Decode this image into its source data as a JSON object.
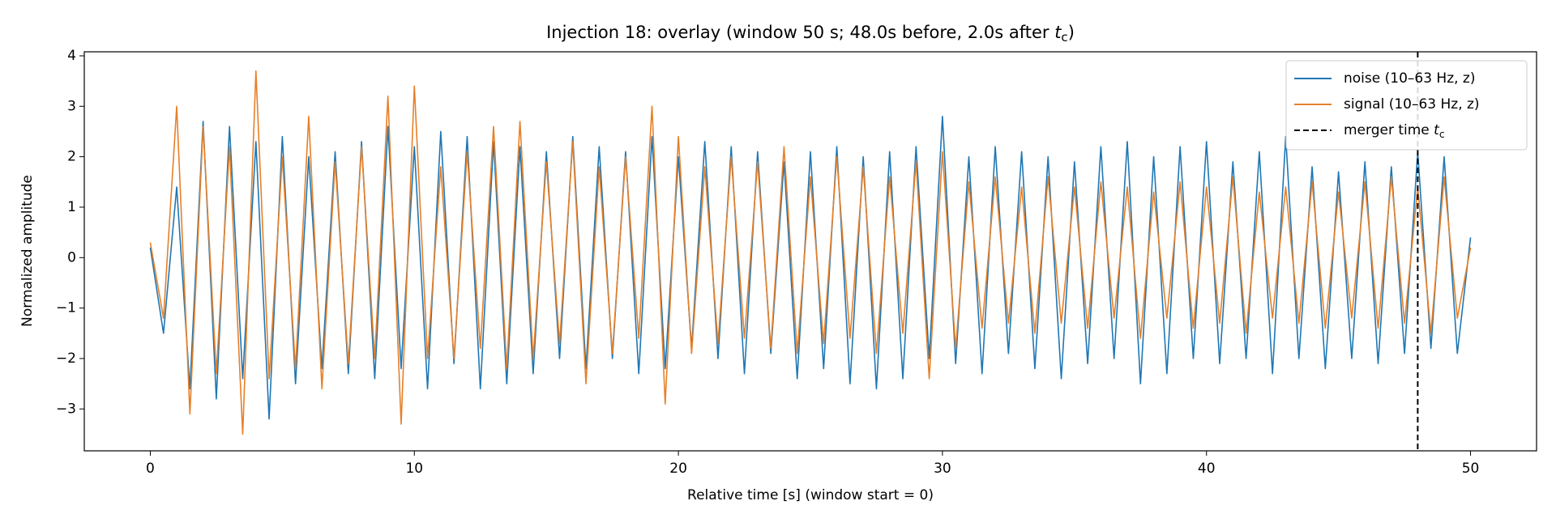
{
  "chart_data": {
    "type": "line",
    "title": "Injection 18: overlay (window 50 s; 48.0s before, 2.0s after t_c)",
    "xlabel": "Relative time [s] (window start = 0)",
    "ylabel": "Normalized amplitude",
    "x": [
      0,
      0.5,
      1,
      1.5,
      2,
      2.5,
      3,
      3.5,
      4,
      4.5,
      5,
      5.5,
      6,
      6.5,
      7,
      7.5,
      8,
      8.5,
      9,
      9.5,
      10,
      10.5,
      11,
      11.5,
      12,
      12.5,
      13,
      13.5,
      14,
      14.5,
      15,
      15.5,
      16,
      16.5,
      17,
      17.5,
      18,
      18.5,
      19,
      19.5,
      20,
      20.5,
      21,
      21.5,
      22,
      22.5,
      23,
      23.5,
      24,
      24.5,
      25,
      25.5,
      26,
      26.5,
      27,
      27.5,
      28,
      28.5,
      29,
      29.5,
      30,
      30.5,
      31,
      31.5,
      32,
      32.5,
      33,
      33.5,
      34,
      34.5,
      35,
      35.5,
      36,
      36.5,
      37,
      37.5,
      38,
      38.5,
      39,
      39.5,
      40,
      40.5,
      41,
      41.5,
      42,
      42.5,
      43,
      43.5,
      44,
      44.5,
      45,
      45.5,
      46,
      46.5,
      47,
      47.5,
      48,
      48.5,
      49,
      49.5,
      50
    ],
    "series": [
      {
        "name": "noise (10–63 Hz, z)",
        "color": "#1f77b4",
        "values": [
          0.2,
          -1.5,
          1.4,
          -2.6,
          2.7,
          -2.8,
          2.6,
          -2.4,
          2.3,
          -3.2,
          2.4,
          -2.5,
          2.0,
          -2.2,
          2.1,
          -2.3,
          2.3,
          -2.4,
          2.6,
          -2.2,
          2.2,
          -2.6,
          2.5,
          -2.1,
          2.4,
          -2.6,
          2.3,
          -2.5,
          2.2,
          -2.3,
          2.1,
          -2.0,
          2.4,
          -2.2,
          2.2,
          -2.0,
          2.1,
          -2.3,
          2.4,
          -2.2,
          2.0,
          -1.8,
          2.3,
          -2.0,
          2.2,
          -2.3,
          2.1,
          -1.9,
          1.9,
          -2.4,
          2.1,
          -2.2,
          2.2,
          -2.5,
          2.0,
          -2.6,
          2.1,
          -2.4,
          2.2,
          -2.0,
          2.8,
          -2.1,
          2.0,
          -2.3,
          2.2,
          -1.9,
          2.1,
          -2.2,
          2.0,
          -2.4,
          1.9,
          -2.1,
          2.2,
          -2.0,
          2.3,
          -2.5,
          2.0,
          -2.3,
          2.2,
          -2.0,
          2.3,
          -2.1,
          1.9,
          -2.0,
          2.1,
          -2.3,
          2.4,
          -2.0,
          1.8,
          -2.2,
          1.7,
          -2.0,
          1.9,
          -2.1,
          1.8,
          -1.9,
          2.1,
          -1.8,
          2.0,
          -1.9,
          0.4
        ]
      },
      {
        "name": "signal (10–63 Hz, z)",
        "color": "#e6802a",
        "values": [
          0.3,
          -1.2,
          3.0,
          -3.1,
          2.6,
          -2.3,
          2.2,
          -3.5,
          3.7,
          -2.4,
          2.0,
          -2.2,
          2.8,
          -2.6,
          1.9,
          -2.1,
          2.2,
          -2.0,
          3.2,
          -3.3,
          3.4,
          -2.0,
          1.8,
          -2.0,
          2.1,
          -1.8,
          2.6,
          -2.2,
          2.7,
          -2.0,
          1.9,
          -1.7,
          2.3,
          -2.5,
          1.8,
          -1.9,
          2.0,
          -1.6,
          3.0,
          -2.9,
          2.4,
          -1.9,
          1.8,
          -1.7,
          2.0,
          -1.6,
          1.9,
          -1.8,
          2.2,
          -1.9,
          1.6,
          -1.7,
          2.0,
          -1.6,
          1.8,
          -1.9,
          1.6,
          -1.5,
          1.9,
          -2.4,
          2.1,
          -1.8,
          1.5,
          -1.4,
          1.6,
          -1.3,
          1.4,
          -1.5,
          1.6,
          -1.3,
          1.4,
          -1.4,
          1.5,
          -1.2,
          1.4,
          -1.6,
          1.3,
          -1.2,
          1.5,
          -1.4,
          1.4,
          -1.3,
          1.6,
          -1.5,
          1.3,
          -1.2,
          1.4,
          -1.3,
          1.5,
          -1.4,
          1.3,
          -1.2,
          1.5,
          -1.4,
          1.6,
          -1.3,
          1.4,
          -1.5,
          1.6,
          -1.2,
          0.2
        ]
      }
    ],
    "vlines": [
      {
        "x": 48,
        "name": "merger time t_c",
        "color": "#000000",
        "dashed": true
      }
    ],
    "xlim": [
      -2.5,
      52.5
    ],
    "xticks": [
      0,
      10,
      20,
      30,
      40,
      50
    ],
    "ylim": [
      -3.83,
      4.08
    ],
    "yticks": [
      {
        "value": -3,
        "label": "−3"
      },
      {
        "value": -2,
        "label": "−2"
      },
      {
        "value": -1,
        "label": "−1"
      },
      0,
      1,
      2,
      3,
      4
    ],
    "grid": false,
    "legend": "upper right"
  }
}
